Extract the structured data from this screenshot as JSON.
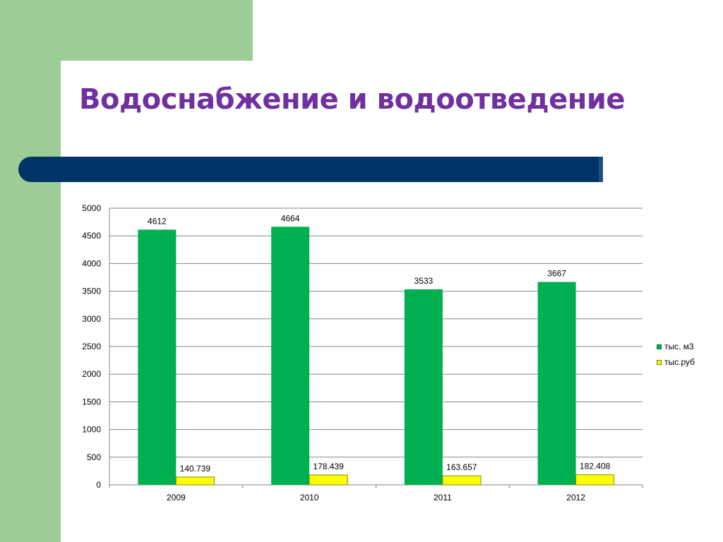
{
  "slide": {
    "title": "Водоснабжение и водоотведение"
  },
  "colors": {
    "title": "#7030a0",
    "accent_bar": "#003366",
    "side_panel": "#9dcd97",
    "series_1": "#00b050",
    "series_2": "#ffff00"
  },
  "chart_data": {
    "type": "bar",
    "categories": [
      "2009",
      "2010",
      "2011",
      "2012"
    ],
    "series": [
      {
        "name": "тыс. м3",
        "values": [
          4612,
          4664,
          3533,
          3667
        ],
        "labels": [
          "4612",
          "4664",
          "3533",
          "3667"
        ],
        "color": "#00b050"
      },
      {
        "name": "тыс.руб",
        "values": [
          140.739,
          178.439,
          163.657,
          182.408
        ],
        "labels": [
          "140.739",
          "178.439",
          "163.657",
          "182.408"
        ],
        "color": "#ffff00"
      }
    ],
    "ylim": [
      0,
      5000
    ],
    "yticks": [
      "0",
      "500",
      "1000",
      "1500",
      "2000",
      "2500",
      "3000",
      "3500",
      "4000",
      "4500",
      "5000"
    ],
    "grid": true,
    "legend_position": "right"
  }
}
